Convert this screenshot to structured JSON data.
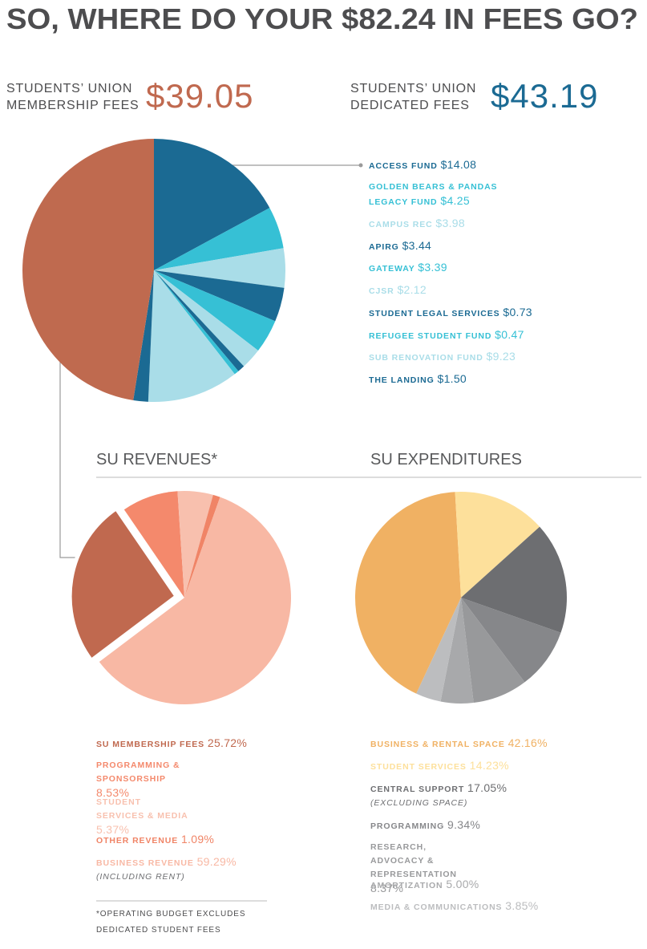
{
  "title": "SO, WHERE DO YOUR $82.24 IN FEES GO?",
  "footnote": "*OPERATING BUDGET EXCLUDES DEDICATED STUDENT FEES",
  "chart_data": [
    {
      "type": "pie",
      "groups": [
        {
          "name": "STUDENTS’ UNION MEMBERSHIP FEES",
          "value": 39.05,
          "value_label": "$39.05",
          "color": "#bf6a4f"
        },
        {
          "name": "STUDENTS’ UNION DEDICATED FEES",
          "value": 43.19,
          "value_label": "$43.19",
          "color": "#1b6a93"
        }
      ],
      "categories": [
        "ACCESS FUND",
        "GOLDEN BEARS & PANDAS LEGACY FUND",
        "CAMPUS REC",
        "APIRG",
        "GATEWAY",
        "CJSR",
        "STUDENT LEGAL SERVICES",
        "REFUGEE STUDENT FUND",
        "SUB RENOVATION FUND",
        "THE LANDING"
      ],
      "values": [
        14.08,
        4.25,
        3.98,
        3.44,
        3.39,
        2.12,
        0.73,
        0.47,
        9.23,
        1.5
      ],
      "value_labels": [
        "$14.08",
        "$4.25",
        "$3.98",
        "$3.44",
        "$3.39",
        "$2.12",
        "$0.73",
        "$0.47",
        "$9.23",
        "$1.50"
      ],
      "colors": [
        "#1b6a93",
        "#36c0d5",
        "#a9dde8",
        "#1b6a93",
        "#36c0d5",
        "#a9dde8",
        "#1b6a93",
        "#36c0d5",
        "#a9dde8",
        "#1b6a93"
      ]
    },
    {
      "type": "pie",
      "title": "SU REVENUES*",
      "categories": [
        "SU MEMBERSHIP FEES",
        "PROGRAMMING & SPONSORSHIP",
        "STUDENT SERVICES & MEDIA",
        "OTHER REVENUE",
        "BUSINESS REVENUE"
      ],
      "values": [
        25.72,
        8.53,
        5.37,
        1.09,
        59.29
      ],
      "value_labels": [
        "25.72%",
        "8.53%",
        "5.37%",
        "1.09%",
        "59.29%"
      ],
      "colors": [
        "#c0694f",
        "#f4896c",
        "#f8c0ae",
        "#f08466",
        "#f8b8a4"
      ],
      "notes": {
        "4": "(INCLUDING RENT)"
      },
      "exploded": 0
    },
    {
      "type": "pie",
      "title": "SU EXPENDITURES",
      "categories": [
        "BUSINESS & RENTAL SPACE",
        "STUDENT SERVICES",
        "CENTRAL SUPPORT",
        "PROGRAMMING",
        "RESEARCH, ADVOCACY & REPRESENTATION",
        "AMORTIZATION",
        "MEDIA & COMMUNICATIONS"
      ],
      "values": [
        42.16,
        14.23,
        17.05,
        9.34,
        8.37,
        5.0,
        3.85
      ],
      "value_labels": [
        "42.16%",
        "14.23%",
        "17.05%",
        "9.34%",
        "8.37%",
        "5.00%",
        "3.85%"
      ],
      "colors": [
        "#f0b163",
        "#fde09b",
        "#6d6e71",
        "#86878a",
        "#98999b",
        "#a8a9ab",
        "#bcbdbf"
      ],
      "notes": {
        "2": "(EXCLUDING SPACE)"
      }
    }
  ]
}
